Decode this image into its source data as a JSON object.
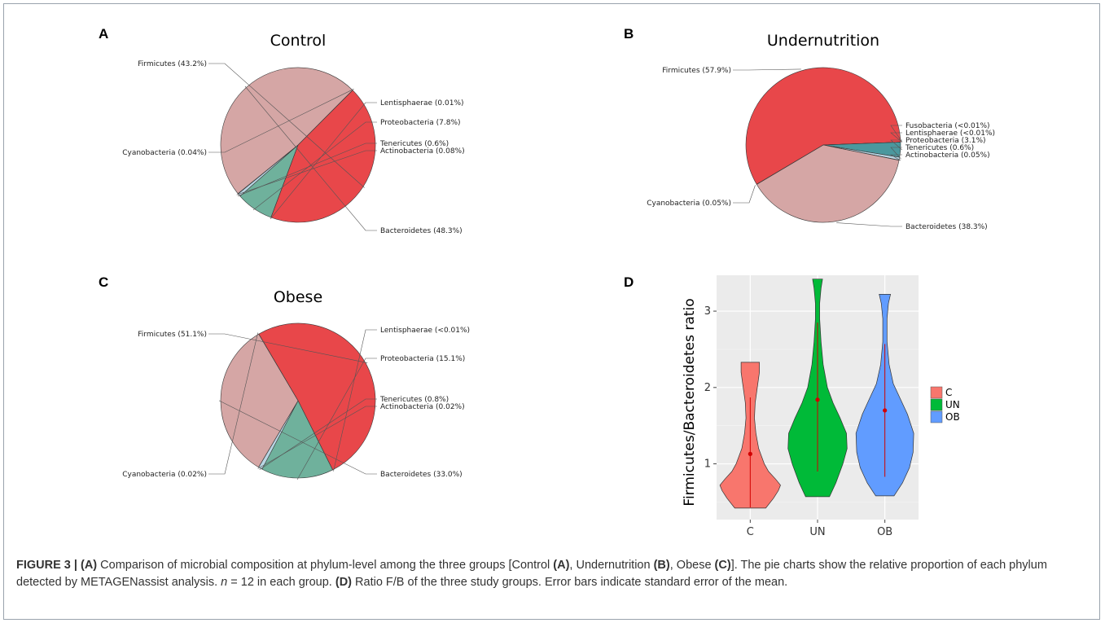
{
  "figure": {
    "panel_labels": [
      "A",
      "B",
      "C",
      "D"
    ],
    "caption": {
      "fig_label": "FIGURE 3 | ",
      "a_tag": "(A)",
      "text1": " Comparison of microbial composition at phylum-level among the three groups [Control ",
      "a_ref": "(A)",
      "text2": ", Undernutrition ",
      "b_ref": "(B)",
      "text3": ", Obese ",
      "c_ref": "(C)",
      "text4": "]. The pie charts show the relative proportion of each phylum detected by METAGENassist analysis. ",
      "n_var": "n",
      "text5": " = 12 in each group. ",
      "d_tag": "(D)",
      "text6": " Ratio F/B of the three study groups. Error bars indicate standard error of the mean."
    }
  },
  "chart_data": [
    {
      "type": "pie",
      "panel": "A",
      "title": "Control",
      "slices": [
        {
          "label": "Firmicutes (43.2%)",
          "value": 43.2,
          "color": "#e8474a"
        },
        {
          "label": "Lentisphaerae (0.01%)",
          "value": 0.01,
          "color": "#6aaa96"
        },
        {
          "label": "Proteobacteria (7.8%)",
          "value": 7.8,
          "color": "#6fb19c"
        },
        {
          "label": "Tenericutes (0.6%)",
          "value": 0.6,
          "color": "#b9d6e4"
        },
        {
          "label": "Actinobacteria (0.08%)",
          "value": 0.08,
          "color": "#3f6fa8"
        },
        {
          "label": "Bacteroidetes (48.3%)",
          "value": 48.3,
          "color": "#d5a6a5"
        },
        {
          "label": "Cyanobacteria (0.04%)",
          "value": 0.04,
          "color": "#7e3d3d"
        }
      ]
    },
    {
      "type": "pie",
      "panel": "B",
      "title": "Undernutrition",
      "slices": [
        {
          "label": "Firmicutes (57.9%)",
          "value": 57.9,
          "color": "#e8474a"
        },
        {
          "label": "Fusobacteria (<0.01%)",
          "value": 0.005,
          "color": "#2f6f7f"
        },
        {
          "label": "Lentisphaerae (<0.01%)",
          "value": 0.005,
          "color": "#3f8a94"
        },
        {
          "label": "Proteobacteria (3.1%)",
          "value": 3.1,
          "color": "#4b989e"
        },
        {
          "label": "Tenericutes (0.6%)",
          "value": 0.6,
          "color": "#b9d6e4"
        },
        {
          "label": "Actinobacteria (0.05%)",
          "value": 0.05,
          "color": "#3f6fa8"
        },
        {
          "label": "Bacteroidetes (38.3%)",
          "value": 38.3,
          "color": "#d5a6a5"
        },
        {
          "label": "Cyanobacteria (0.05%)",
          "value": 0.05,
          "color": "#7e3d3d"
        }
      ]
    },
    {
      "type": "pie",
      "panel": "C",
      "title": "Obese",
      "slices": [
        {
          "label": "Firmicutes (51.1%)",
          "value": 51.1,
          "color": "#e8474a"
        },
        {
          "label": "Lentisphaerae (<0.01%)",
          "value": 0.005,
          "color": "#6aaa96"
        },
        {
          "label": "Proteobacteria (15.1%)",
          "value": 15.1,
          "color": "#6fb19c"
        },
        {
          "label": "Tenericutes (0.8%)",
          "value": 0.8,
          "color": "#b9d6e4"
        },
        {
          "label": "Actinobacteria (0.02%)",
          "value": 0.02,
          "color": "#3f6fa8"
        },
        {
          "label": "Bacteroidetes (33.0%)",
          "value": 33.0,
          "color": "#d5a6a5"
        },
        {
          "label": "Cyanobacteria (0.02%)",
          "value": 0.02,
          "color": "#7e3d3d"
        }
      ]
    },
    {
      "type": "violin",
      "panel": "D",
      "ylabel": "Firmicutes/Bacteroidetes ratio",
      "xlabel": "",
      "categories": [
        "C",
        "UN",
        "OB"
      ],
      "colors": [
        "#f8766d",
        "#00ba38",
        "#619cff"
      ],
      "ylim": [
        0.27,
        3.47
      ],
      "yticks": [
        1,
        2,
        3
      ],
      "grid": true,
      "legend": {
        "position": "right",
        "entries": [
          "C",
          "UN",
          "OB"
        ]
      },
      "series": [
        {
          "name": "C",
          "min": 0.42,
          "max": 2.33,
          "mean": 1.13,
          "err_low": 0.43,
          "err_high": 1.87,
          "profile": [
            [
              0.42,
              0.22
            ],
            [
              0.55,
              0.33
            ],
            [
              0.65,
              0.4
            ],
            [
              0.72,
              0.43
            ],
            [
              0.8,
              0.36
            ],
            [
              0.9,
              0.26
            ],
            [
              1.0,
              0.2
            ],
            [
              1.2,
              0.12
            ],
            [
              1.4,
              0.08
            ],
            [
              1.6,
              0.06
            ],
            [
              1.8,
              0.07
            ],
            [
              2.0,
              0.1
            ],
            [
              2.2,
              0.13
            ],
            [
              2.33,
              0.13
            ]
          ]
        },
        {
          "name": "UN",
          "min": 0.57,
          "max": 3.42,
          "mean": 1.84,
          "err_low": 0.9,
          "err_high": 2.85,
          "profile": [
            [
              0.57,
              0.17
            ],
            [
              0.75,
              0.26
            ],
            [
              1.0,
              0.36
            ],
            [
              1.2,
              0.42
            ],
            [
              1.4,
              0.41
            ],
            [
              1.6,
              0.32
            ],
            [
              1.8,
              0.22
            ],
            [
              2.0,
              0.14
            ],
            [
              2.3,
              0.08
            ],
            [
              2.6,
              0.05
            ],
            [
              2.9,
              0.03
            ],
            [
              3.1,
              0.03
            ],
            [
              3.3,
              0.05
            ],
            [
              3.42,
              0.07
            ]
          ]
        },
        {
          "name": "OB",
          "min": 0.58,
          "max": 3.22,
          "mean": 1.7,
          "err_low": 0.83,
          "err_high": 2.57,
          "profile": [
            [
              0.58,
              0.13
            ],
            [
              0.75,
              0.25
            ],
            [
              0.95,
              0.35
            ],
            [
              1.15,
              0.4
            ],
            [
              1.4,
              0.41
            ],
            [
              1.65,
              0.32
            ],
            [
              1.85,
              0.22
            ],
            [
              2.05,
              0.12
            ],
            [
              2.3,
              0.06
            ],
            [
              2.6,
              0.03
            ],
            [
              2.9,
              0.03
            ],
            [
              3.1,
              0.05
            ],
            [
              3.22,
              0.08
            ]
          ]
        }
      ]
    }
  ]
}
